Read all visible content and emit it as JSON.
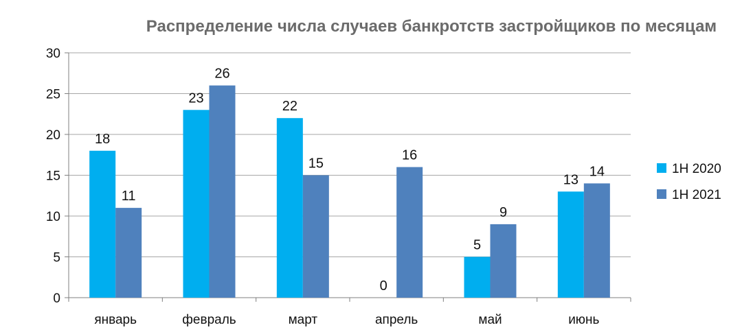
{
  "chart_data": {
    "type": "bar",
    "title": "Распределение числа случаев банкротств застройщиков по месяцам",
    "xlabel": "",
    "ylabel": "",
    "ylim": [
      0,
      30
    ],
    "yticks": [
      0,
      5,
      10,
      15,
      20,
      25,
      30
    ],
    "grid": true,
    "legend_position": "right",
    "categories": [
      "январь",
      "февраль",
      "март",
      "апрель",
      "май",
      "июнь"
    ],
    "series": [
      {
        "name": "1H 2020",
        "color": "#00AEEF",
        "values": [
          18,
          23,
          22,
          0,
          5,
          13
        ]
      },
      {
        "name": "1H 2021",
        "color": "#4F81BD",
        "values": [
          11,
          26,
          15,
          16,
          9,
          14
        ]
      }
    ]
  }
}
